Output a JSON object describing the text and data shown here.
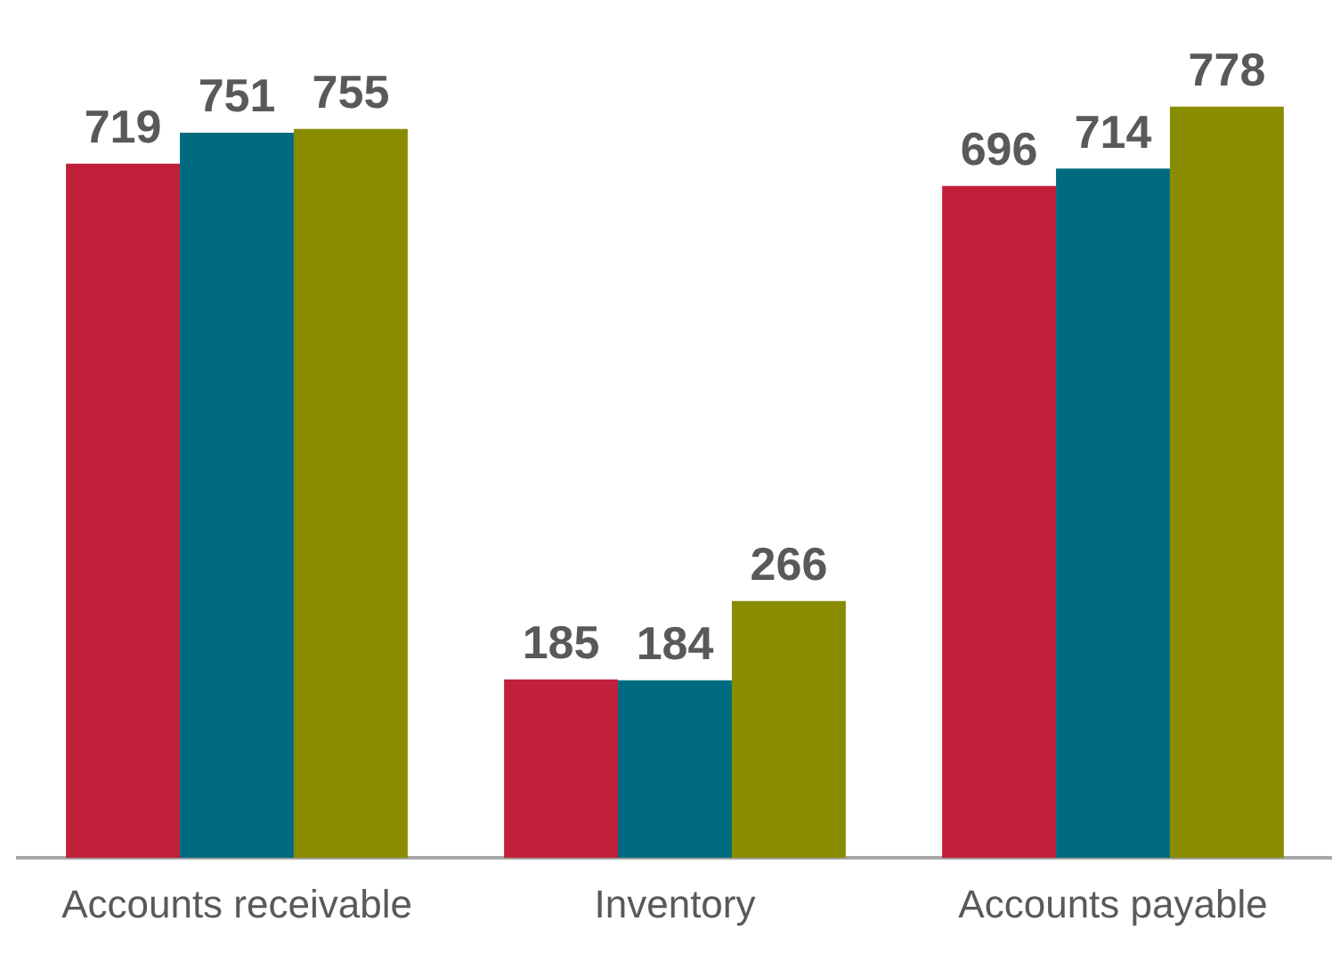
{
  "chart_data": {
    "type": "bar",
    "categories": [
      "Accounts receivable",
      "Inventory",
      "Accounts payable"
    ],
    "series": [
      {
        "color": "#c0203a",
        "values": [
          719,
          185,
          696
        ]
      },
      {
        "color": "#006b80",
        "values": [
          751,
          184,
          714
        ]
      },
      {
        "color": "#8a8c00",
        "values": [
          755,
          266,
          778
        ]
      }
    ],
    "data_labels": true,
    "grid": false,
    "legend": false
  }
}
